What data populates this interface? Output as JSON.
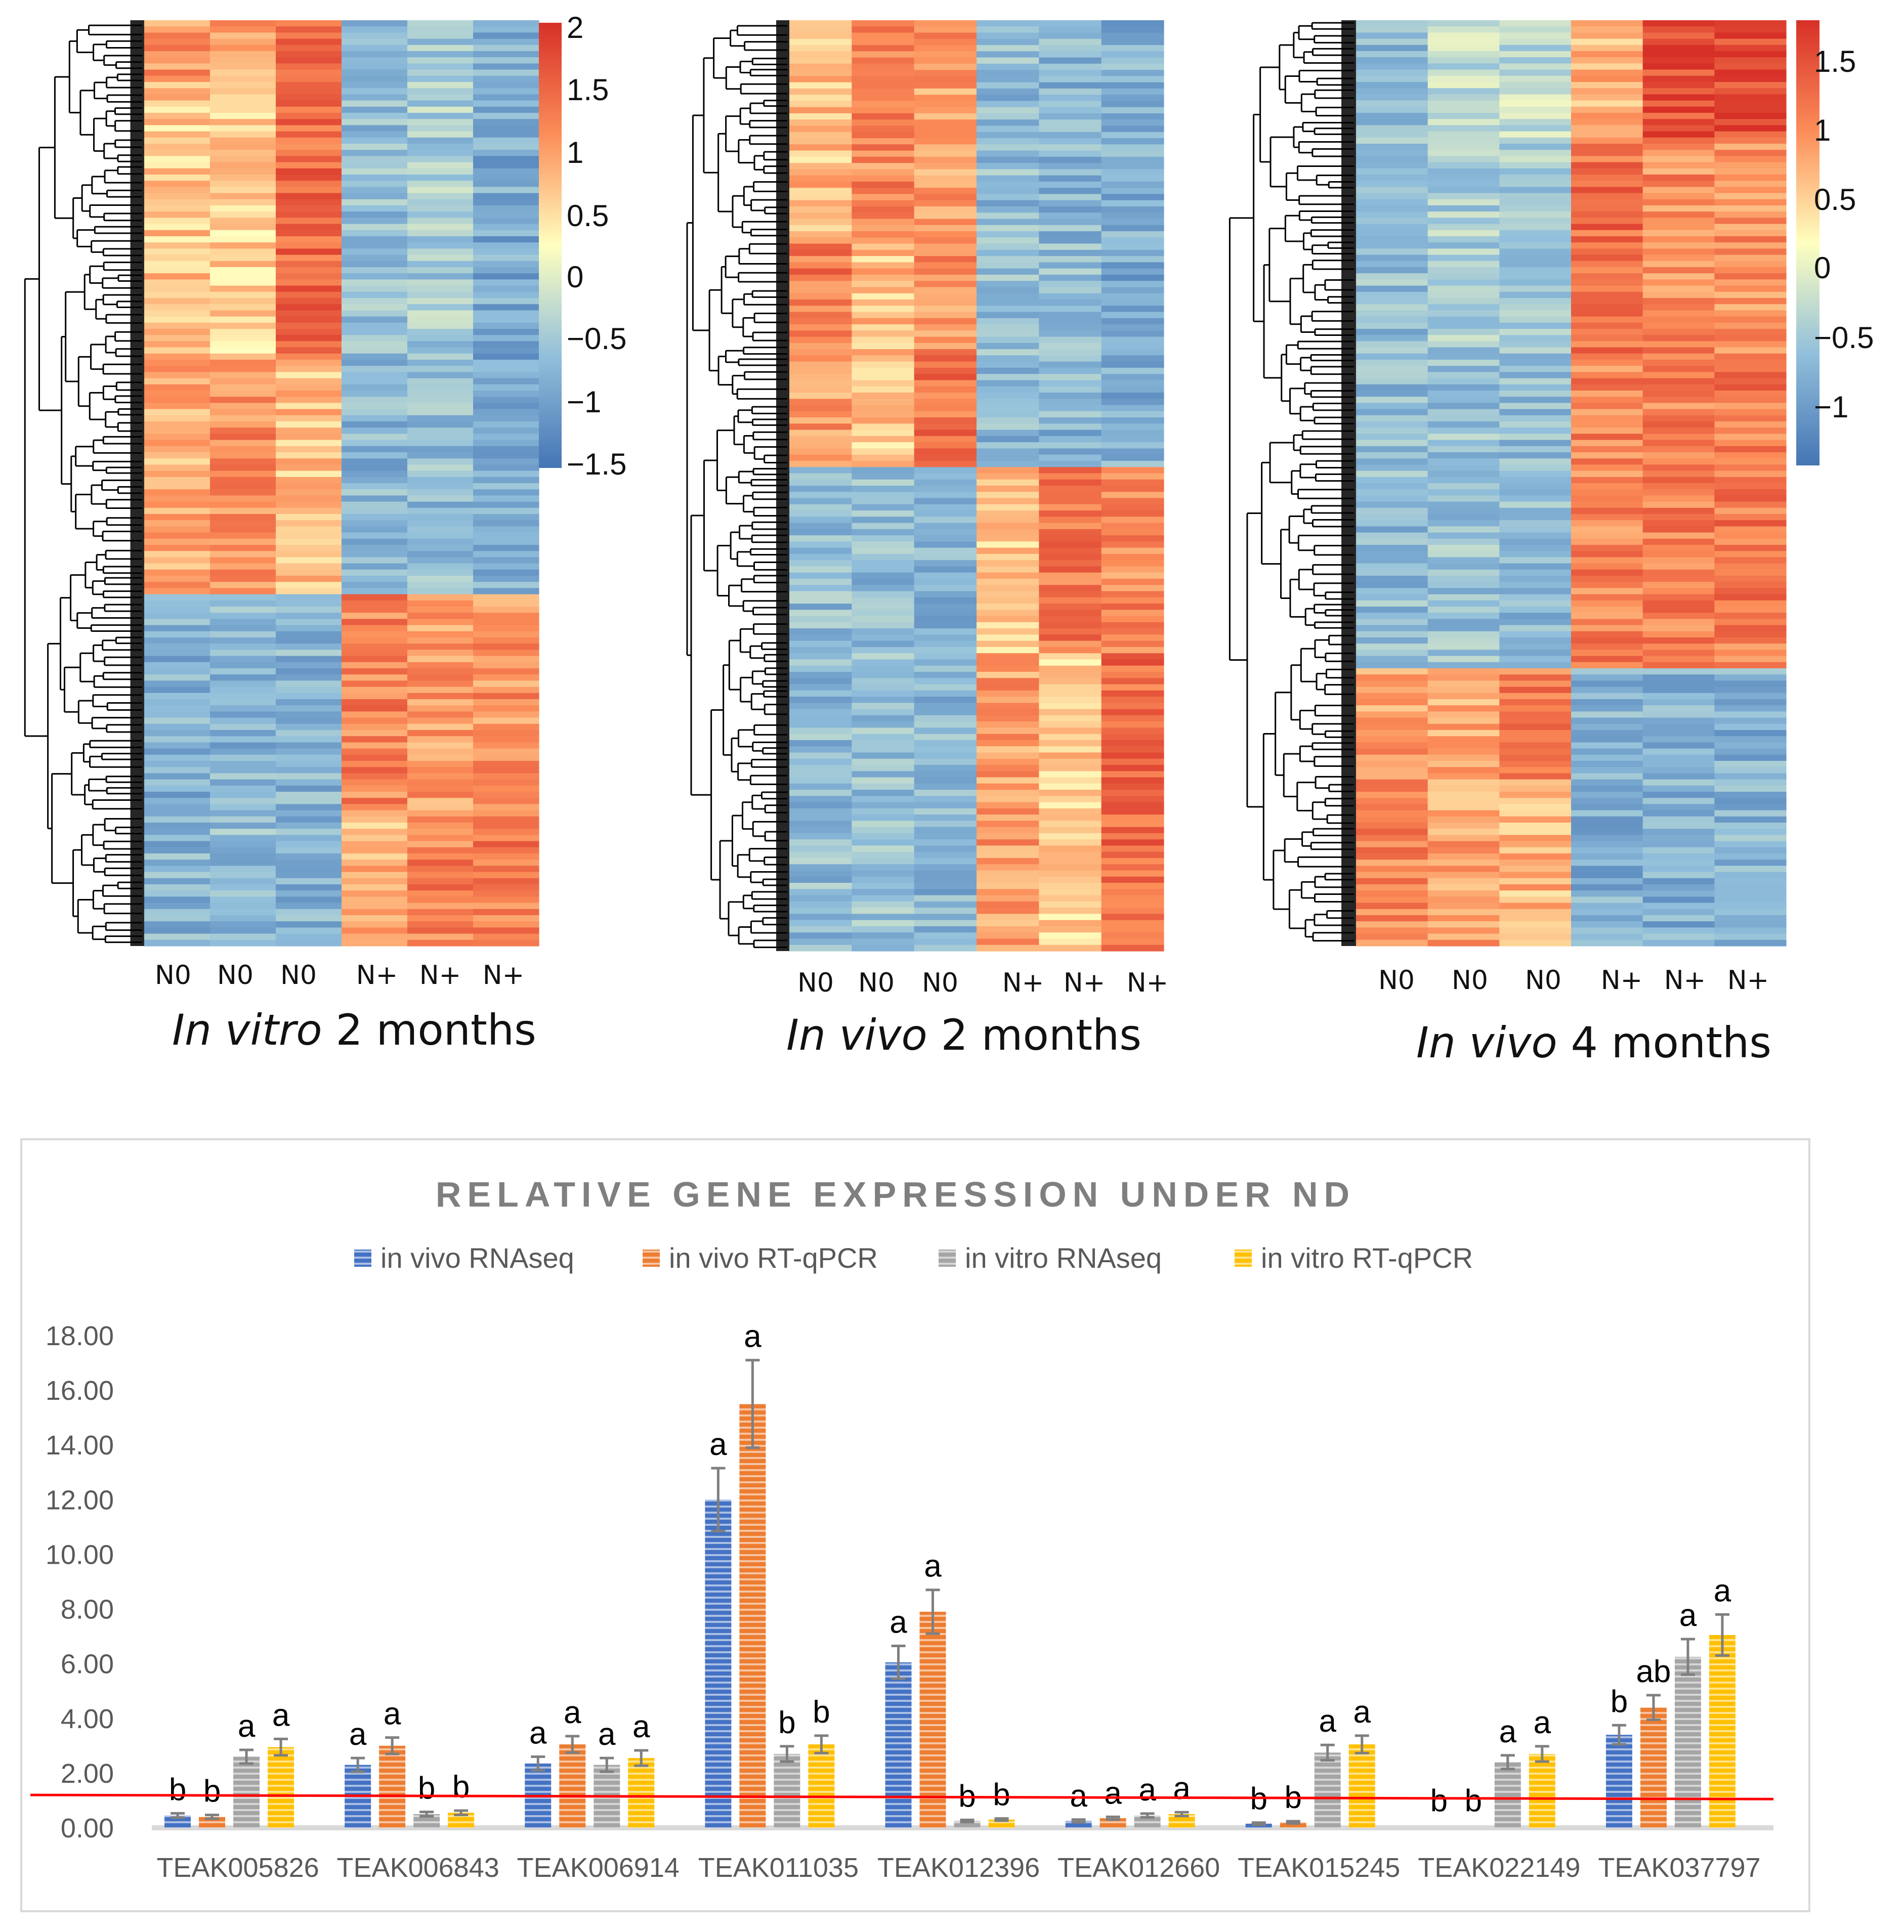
{
  "heatmap_panels": [
    {
      "title_italic": "In vitro",
      "title_rest": " 2 months",
      "columns": [
        "N0",
        "N0",
        "N0",
        "N+",
        "N+",
        "N+"
      ],
      "colorbar_ticks": [
        "2",
        "1.5",
        "1",
        "0.5",
        "0",
        "−0.5",
        "−1",
        "−1.5"
      ]
    },
    {
      "title_italic": "In vivo",
      "title_rest": " 2 months",
      "columns": [
        "N0",
        "N0",
        "N0",
        "N+",
        "N+",
        "N+"
      ],
      "colorbar_ticks": []
    },
    {
      "title_italic": "In vivo",
      "title_rest": " 4 months",
      "columns": [
        "N0",
        "N0",
        "N0",
        "N+",
        "N+",
        "N+"
      ],
      "colorbar_ticks": [
        "1.5",
        "1",
        "0.5",
        "0",
        "−0.5",
        "−1"
      ]
    }
  ],
  "colors": {
    "high": "#d73027",
    "mid_high": "#fc8d59",
    "mid": "#ffffbf",
    "mid_low": "#91bfdb",
    "low": "#4575b4",
    "series": [
      "#4472c4",
      "#ed7d31",
      "#a5a5a5",
      "#ffc000"
    ],
    "error_bar": "#7f7f7f",
    "reference_line": "#ff0000"
  },
  "chart_data": {
    "type": "bar",
    "title": "RELATIVE GENE EXPRESSION UNDER ND",
    "categories": [
      "TEAK005826",
      "TEAK006843",
      "TEAK006914",
      "TEAK011035",
      "TEAK012396",
      "TEAK012660",
      "TEAK015245",
      "TEAK022149",
      "TEAK037797"
    ],
    "series": [
      {
        "name": "in vivo RNAseq",
        "values": [
          0.45,
          2.3,
          2.35,
          12.0,
          6.05,
          0.25,
          0.15,
          0.0,
          3.4
        ],
        "errors": [
          0.08,
          0.25,
          0.25,
          1.15,
          0.6,
          0.05,
          0.04,
          0.0,
          0.35
        ]
      },
      {
        "name": "in vivo RT-qPCR",
        "values": [
          0.4,
          3.0,
          3.05,
          15.5,
          7.9,
          0.35,
          0.2,
          0.0,
          4.4
        ],
        "errors": [
          0.07,
          0.3,
          0.3,
          1.6,
          0.8,
          0.05,
          0.04,
          0.0,
          0.45
        ]
      },
      {
        "name": "in vitro RNAseq",
        "values": [
          2.6,
          0.5,
          2.3,
          2.7,
          0.25,
          0.45,
          2.75,
          2.4,
          6.25
        ],
        "errors": [
          0.25,
          0.08,
          0.25,
          0.28,
          0.04,
          0.07,
          0.28,
          0.25,
          0.65
        ]
      },
      {
        "name": "in vitro RT-qPCR",
        "values": [
          2.95,
          0.55,
          2.55,
          3.05,
          0.3,
          0.5,
          3.05,
          2.7,
          7.05
        ],
        "errors": [
          0.3,
          0.08,
          0.28,
          0.32,
          0.04,
          0.07,
          0.32,
          0.28,
          0.75
        ]
      }
    ],
    "significance_letters": [
      [
        "b",
        "b",
        "a",
        "a"
      ],
      [
        "a",
        "a",
        "b",
        "b"
      ],
      [
        "a",
        "a",
        "a",
        "a"
      ],
      [
        "a",
        "a",
        "b",
        "b"
      ],
      [
        "a",
        "a",
        "b",
        "b"
      ],
      [
        "a",
        "a",
        "a",
        "a"
      ],
      [
        "b",
        "b",
        "a",
        "a"
      ],
      [
        "b",
        "b",
        "a",
        "a"
      ],
      [
        "b",
        "ab",
        "a",
        "a"
      ]
    ],
    "y_ticks": [
      "0.00",
      "2.00",
      "4.00",
      "6.00",
      "8.00",
      "10.00",
      "12.00",
      "14.00",
      "16.00",
      "18.00"
    ],
    "ylim": [
      0,
      18
    ],
    "reference_line": {
      "start": 1.2,
      "end": 1.05
    },
    "legend_position": "top",
    "xlabel": "",
    "ylabel": ""
  }
}
